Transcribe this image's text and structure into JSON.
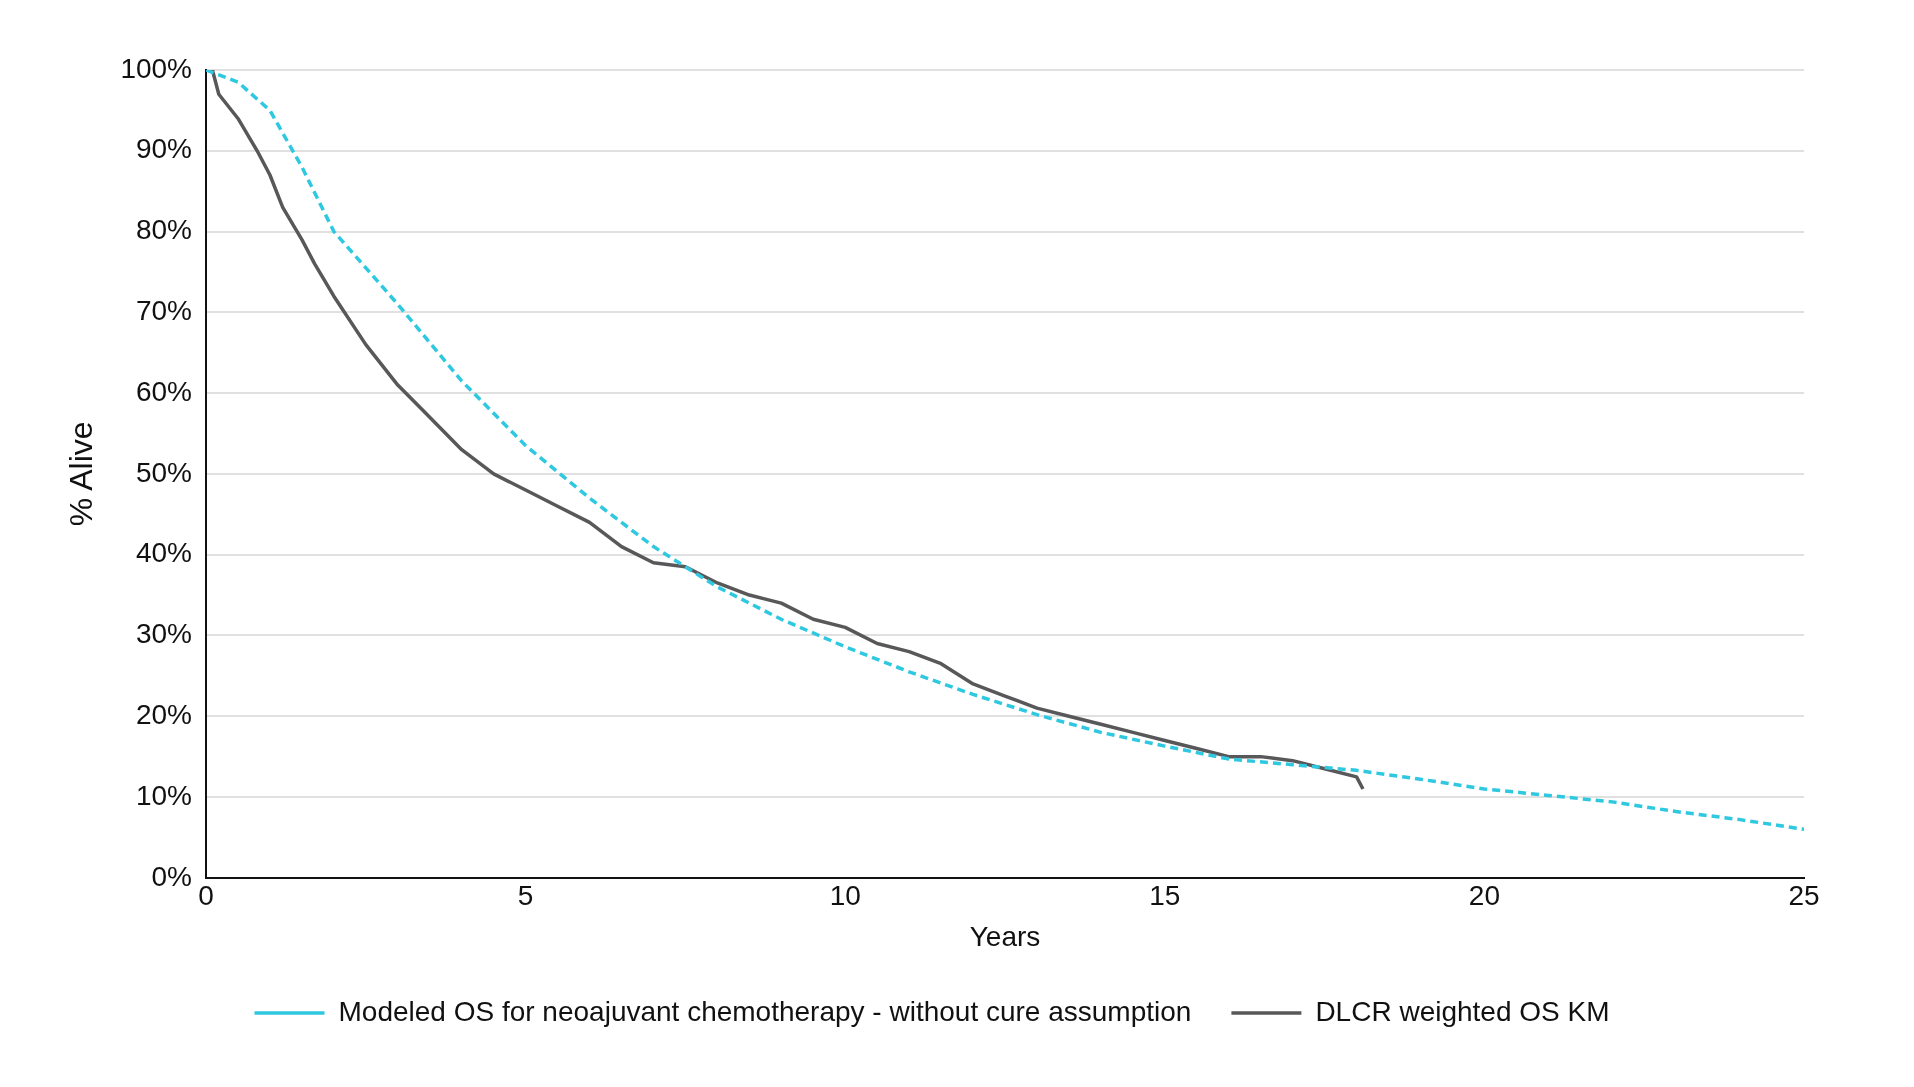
{
  "chart_data": {
    "type": "line",
    "xlabel": "Years",
    "ylabel": "% Alive",
    "xlim": [
      0,
      25
    ],
    "xticks": [
      0,
      5,
      10,
      15,
      20,
      25
    ],
    "ylim": [
      0,
      100
    ],
    "yticks": [
      {
        "value": 0,
        "label": "0%"
      },
      {
        "value": 10,
        "label": "10%"
      },
      {
        "value": 20,
        "label": "20%"
      },
      {
        "value": 30,
        "label": "30%"
      },
      {
        "value": 40,
        "label": "40%"
      },
      {
        "value": 50,
        "label": "50%"
      },
      {
        "value": 60,
        "label": "60%"
      },
      {
        "value": 70,
        "label": "70%"
      },
      {
        "value": 80,
        "label": "80%"
      },
      {
        "value": 90,
        "label": "90%"
      },
      {
        "value": 100,
        "label": "100%"
      }
    ],
    "grid": "y",
    "legend": "bottom",
    "marker": "none",
    "series": [
      {
        "name": "Modeled OS for neoajuvant chemotherapy - without cure assumption",
        "color": "#2ec8e0",
        "line_style": "dashed",
        "x": [
          0,
          0.5,
          1,
          1.5,
          2,
          3,
          4,
          5,
          6,
          7,
          8,
          9,
          10,
          11,
          12,
          13,
          14,
          15,
          16,
          17,
          18,
          19,
          20,
          21,
          22,
          23,
          24,
          25
        ],
        "values": [
          100,
          98.5,
          95,
          88,
          80,
          71,
          61.5,
          53.5,
          47,
          41,
          36,
          32,
          28.6,
          25.5,
          22.7,
          20.2,
          18,
          16.3,
          14.7,
          14,
          13.3,
          12.2,
          11,
          10.2,
          9.4,
          8.2,
          7.2,
          6
        ]
      },
      {
        "name": "DLCR weighted OS KM",
        "color": "#58585a",
        "line_style": "solid",
        "x": [
          0,
          0.1,
          0.2,
          0.5,
          0.8,
          1,
          1.2,
          1.5,
          1.7,
          2,
          2.5,
          3,
          3.5,
          4,
          4.5,
          5,
          5.5,
          6,
          6.5,
          7,
          7.5,
          8,
          8.5,
          9,
          9.5,
          10,
          10.5,
          11,
          11.5,
          12,
          12.5,
          13,
          13.5,
          14,
          14.5,
          15,
          15.5,
          16,
          16.5,
          17,
          17.5,
          18,
          18.1
        ],
        "values": [
          100,
          100,
          97,
          94,
          90,
          87,
          83,
          79,
          76,
          72,
          66,
          61,
          57,
          53,
          50,
          48,
          46,
          44,
          41,
          39,
          38.5,
          36.5,
          35,
          34,
          32,
          31,
          29,
          28,
          26.5,
          24,
          22.5,
          21,
          20,
          19,
          18,
          17,
          16,
          15,
          15,
          14.5,
          13.5,
          12.5,
          11
        ]
      }
    ]
  }
}
